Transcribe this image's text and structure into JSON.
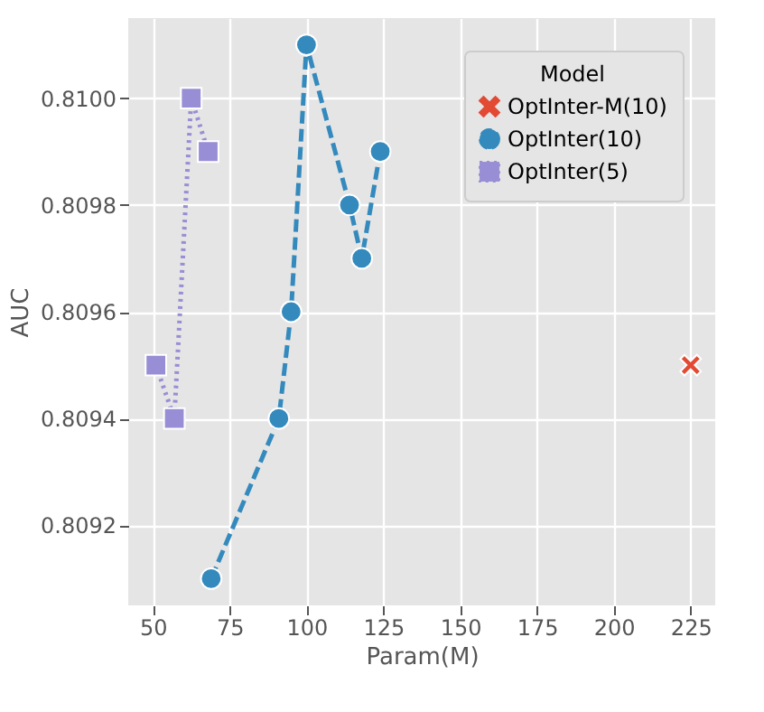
{
  "chart_data": {
    "type": "line",
    "xlabel": "Param(M)",
    "ylabel": "AUC",
    "legend_title": "Model",
    "legend": "top right",
    "grid": true,
    "xlim": [
      42,
      233
    ],
    "xticks": [
      50,
      75,
      100,
      125,
      150,
      175,
      200,
      225
    ],
    "ylim": [
      0.80905,
      0.81015
    ],
    "yticks": [
      0.8092,
      0.8094,
      0.8096,
      0.8098,
      {
        "value": 0.81,
        "label": "0.8100"
      }
    ],
    "series": [
      {
        "name": "OptInter-M(10)",
        "color": "#e24a33",
        "marker": "cross",
        "line_style": "solid",
        "x": [
          225
        ],
        "values": [
          0.8095
        ]
      },
      {
        "name": "OptInter(10)",
        "color": "#348abd",
        "marker": "circle",
        "line_style": "dashed",
        "x": [
          69,
          91,
          95,
          100,
          114,
          118,
          124
        ],
        "values": [
          0.8091,
          0.8094,
          0.8096,
          0.8101,
          0.8098,
          0.8097,
          0.8099
        ]
      },
      {
        "name": "OptInter(5)",
        "color": "#988ed5",
        "marker": "square",
        "line_style": "dotted",
        "x": [
          51,
          57,
          62.5,
          68
        ],
        "values": [
          0.8095,
          0.8094,
          0.81,
          0.8099
        ]
      }
    ]
  }
}
